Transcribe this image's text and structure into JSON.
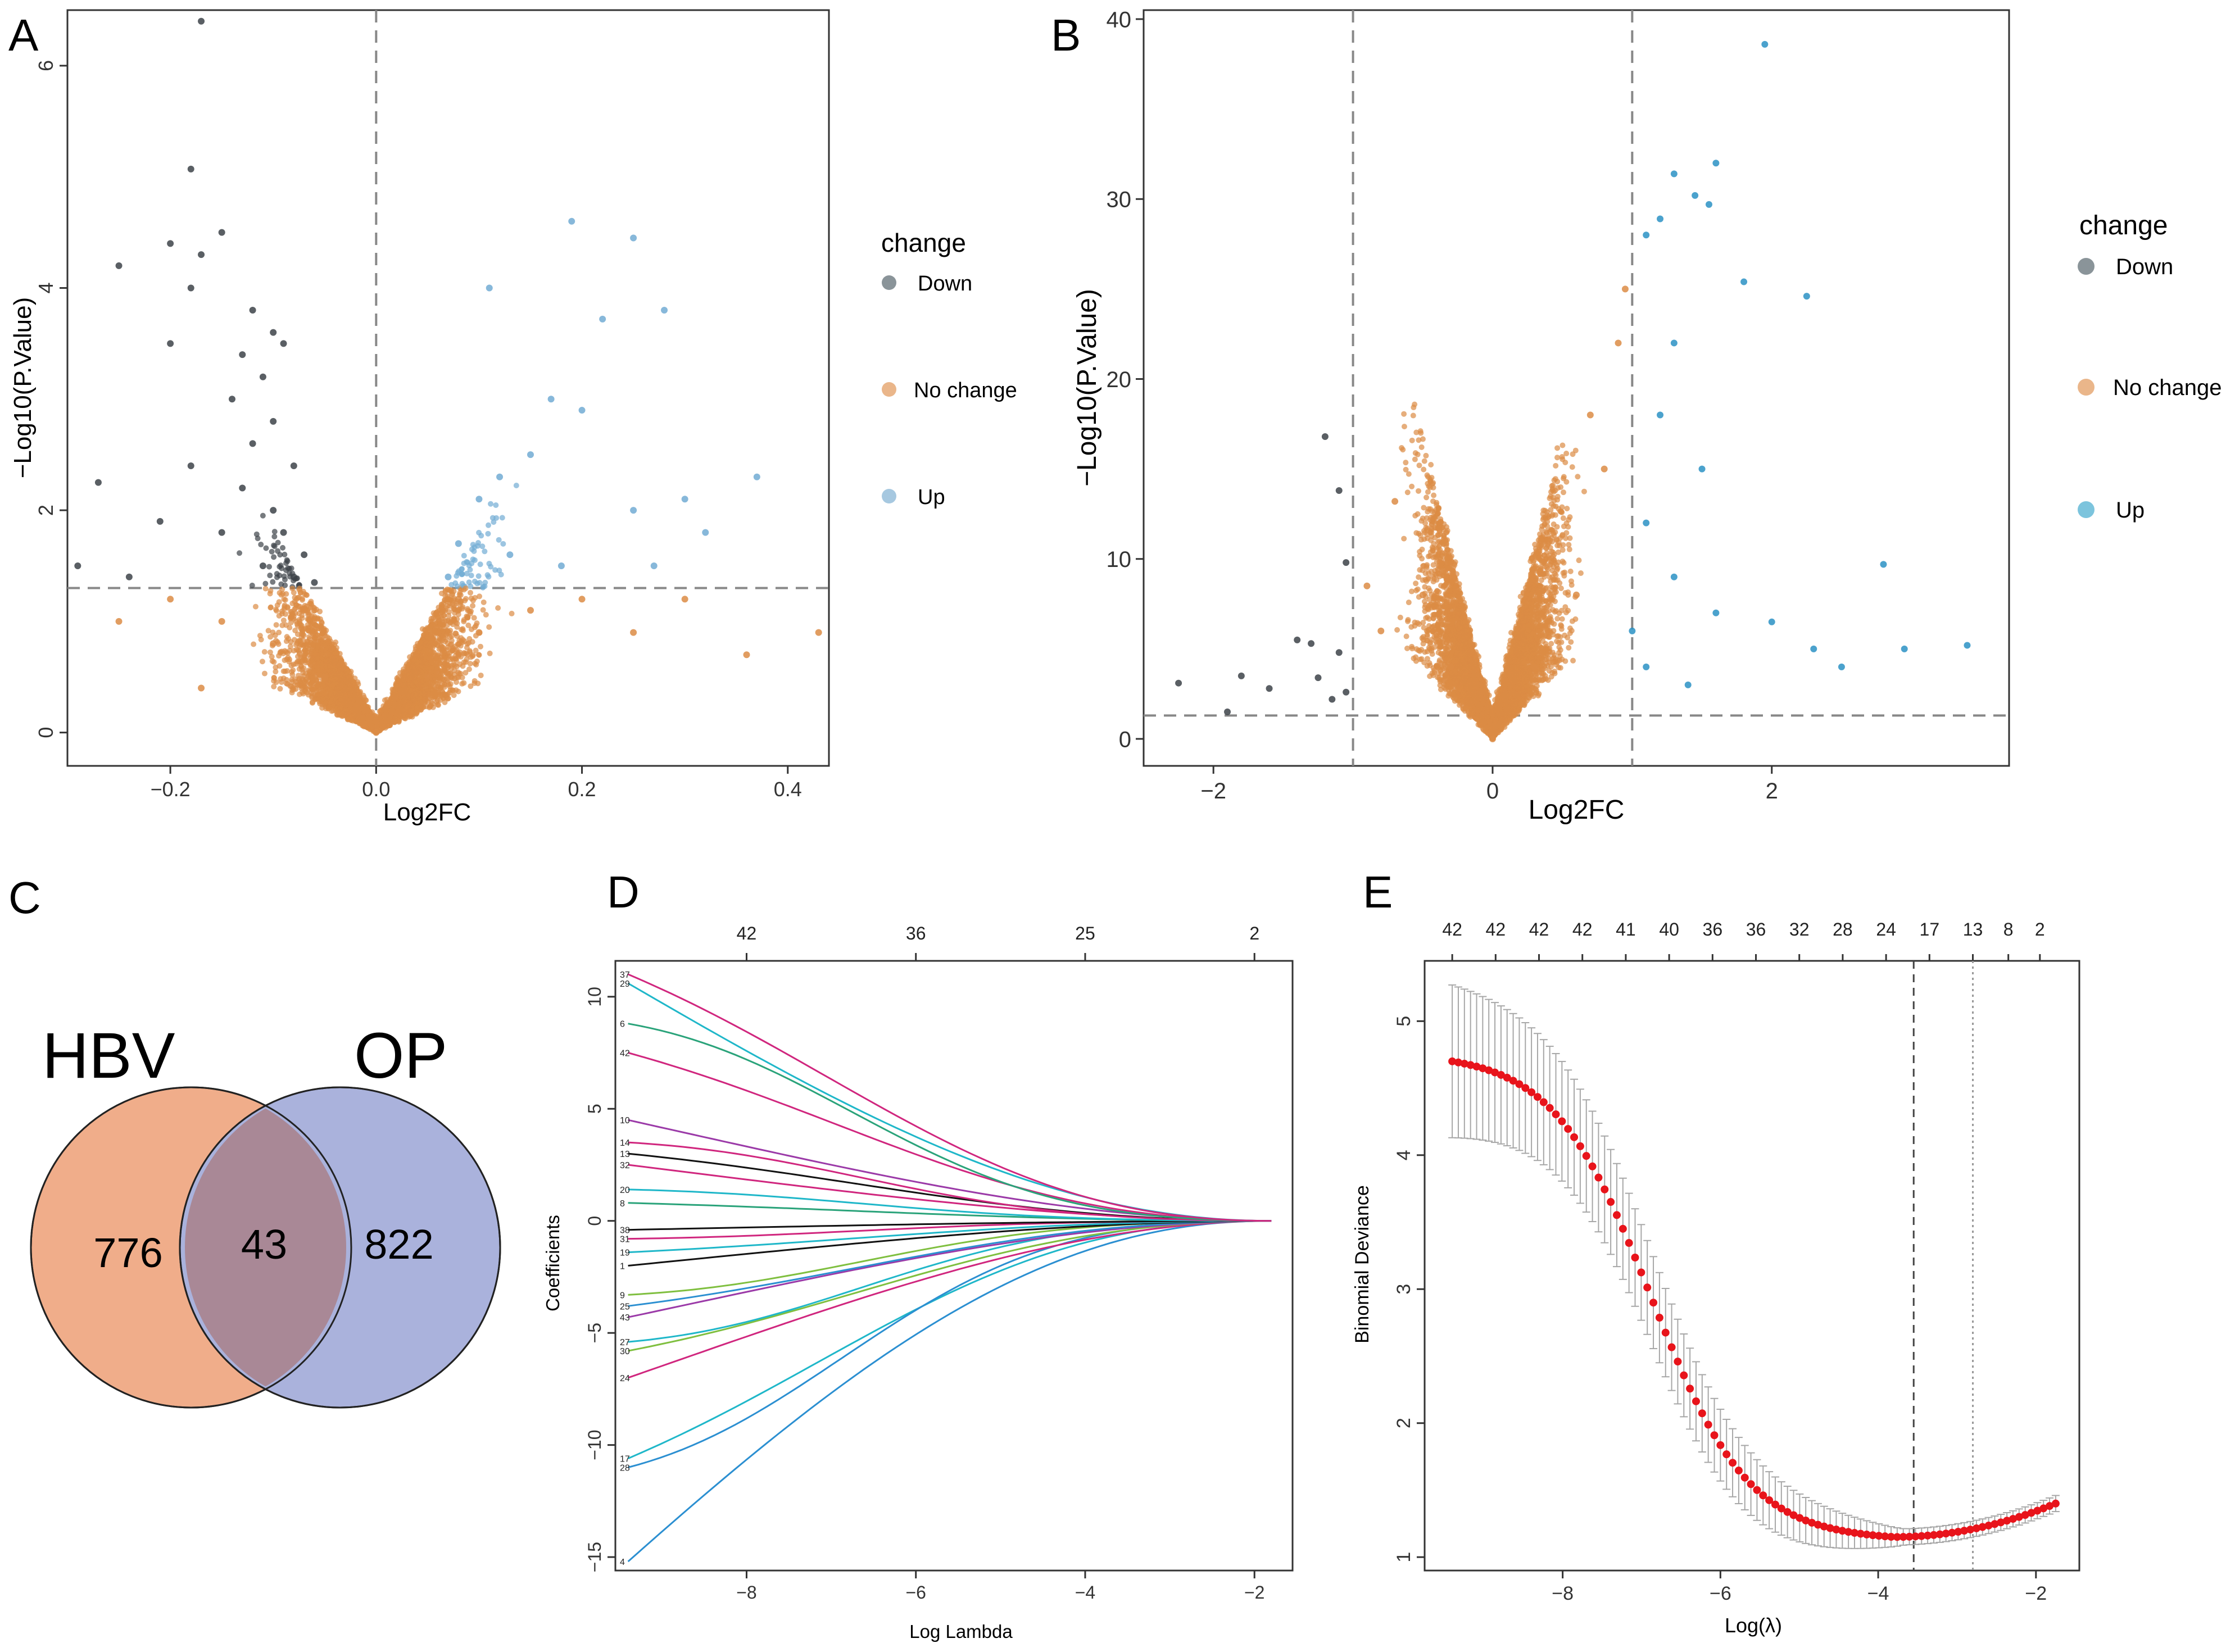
{
  "colors": {
    "down": "#3d4349",
    "down_legend": "#8a9499",
    "nochange": "#dc8c45",
    "nochange_legend": "#eab68a",
    "up_a": "#72acd4",
    "up_b": "#2b92c4",
    "up_a_legend": "#a6c8e0",
    "up_b_legend": "#7cc4dd",
    "venn_hbv": "#f0ad8a",
    "venn_op": "#aab2dc",
    "venn_overlap": "#a98896",
    "cv_point": "#e8141b",
    "cv_bar": "#a7a7a7",
    "lasso_palette": [
      "#2b8fd1",
      "#d0267e",
      "#1fb7c9",
      "#111111",
      "#7fbf3f",
      "#9b3aa8",
      "#2aa37a"
    ]
  },
  "chart_data": [
    {
      "panel": "A",
      "type": "scatter",
      "subtype": "volcano",
      "xlabel": "Log2FC",
      "ylabel": "−Log10(P.Value)",
      "xlim": [
        -0.3,
        0.44
      ],
      "ylim": [
        -0.3,
        6.5
      ],
      "xticks": [
        -0.2,
        0.0,
        0.2,
        0.4
      ],
      "xtick_labels": [
        "−0.2",
        "0.0",
        "0.2",
        "0.4"
      ],
      "yticks": [
        0,
        2,
        4,
        6
      ],
      "ytick_labels": [
        "0",
        "2",
        "4",
        "6"
      ],
      "vlines": [
        0.0
      ],
      "hlines": [
        1.3
      ],
      "legend": {
        "title": "change",
        "items": [
          {
            "label": "Down",
            "color_key": "down_legend"
          },
          {
            "label": "No change",
            "color_key": "nochange_legend"
          },
          {
            "label": "Up",
            "color_key": "up_a_legend"
          }
        ]
      },
      "series": [
        {
          "name": "Down",
          "color_key": "down",
          "points": [
            [
              -0.17,
              6.4
            ],
            [
              -0.18,
              5.07
            ],
            [
              -0.2,
              4.4
            ],
            [
              -0.15,
              4.5
            ],
            [
              -0.18,
              4.0
            ],
            [
              -0.25,
              4.2
            ],
            [
              -0.17,
              4.3
            ],
            [
              -0.2,
              3.5
            ],
            [
              -0.12,
              3.8
            ],
            [
              -0.1,
              3.6
            ],
            [
              -0.13,
              3.4
            ],
            [
              -0.09,
              3.5
            ],
            [
              -0.11,
              3.2
            ],
            [
              -0.14,
              3.0
            ],
            [
              -0.1,
              2.8
            ],
            [
              -0.12,
              2.6
            ],
            [
              -0.08,
              2.4
            ],
            [
              -0.13,
              2.2
            ],
            [
              -0.1,
              2.0
            ],
            [
              -0.09,
              1.8
            ],
            [
              -0.07,
              1.6
            ],
            [
              -0.11,
              1.5
            ],
            [
              -0.08,
              1.4
            ],
            [
              -0.06,
              1.35
            ],
            [
              -0.27,
              2.25
            ],
            [
              -0.29,
              1.5
            ],
            [
              -0.21,
              1.9
            ],
            [
              -0.18,
              2.4
            ],
            [
              -0.15,
              1.8
            ],
            [
              -0.24,
              1.4
            ]
          ]
        },
        {
          "name": "No change",
          "color_key": "nochange",
          "points": [
            [
              -0.2,
              1.2
            ],
            [
              -0.15,
              1.0
            ],
            [
              -0.1,
              0.8
            ],
            [
              -0.05,
              0.5
            ],
            [
              0.0,
              0.0
            ],
            [
              0.05,
              0.5
            ],
            [
              0.1,
              0.9
            ],
            [
              0.15,
              1.1
            ],
            [
              0.2,
              1.2
            ],
            [
              -0.07,
              1.1
            ],
            [
              0.08,
              1.2
            ],
            [
              0.25,
              0.9
            ],
            [
              0.3,
              1.2
            ],
            [
              0.36,
              0.7
            ],
            [
              0.43,
              0.9
            ],
            [
              -0.25,
              1.0
            ],
            [
              -0.17,
              0.4
            ]
          ]
        },
        {
          "name": "Up",
          "color_key": "up_a",
          "points": [
            [
              0.19,
              4.6
            ],
            [
              0.25,
              4.45
            ],
            [
              0.11,
              4.0
            ],
            [
              0.22,
              3.72
            ],
            [
              0.28,
              3.8
            ],
            [
              0.17,
              3.0
            ],
            [
              0.2,
              2.9
            ],
            [
              0.15,
              2.5
            ],
            [
              0.12,
              2.3
            ],
            [
              0.1,
              2.1
            ],
            [
              0.25,
              2.0
            ],
            [
              0.3,
              2.1
            ],
            [
              0.37,
              2.3
            ],
            [
              0.08,
              1.7
            ],
            [
              0.13,
              1.6
            ],
            [
              0.18,
              1.5
            ],
            [
              0.27,
              1.5
            ],
            [
              0.32,
              1.8
            ],
            [
              0.07,
              1.4
            ]
          ]
        }
      ]
    },
    {
      "panel": "B",
      "type": "scatter",
      "subtype": "volcano",
      "xlabel": "Log2FC",
      "ylabel": "−Log10(P.Value)",
      "xlim": [
        -2.5,
        3.7
      ],
      "ylim": [
        -1.5,
        40.5
      ],
      "xticks": [
        -2,
        0,
        2
      ],
      "xtick_labels": [
        "−2",
        "0",
        "2"
      ],
      "yticks": [
        0,
        10,
        20,
        30,
        40
      ],
      "ytick_labels": [
        "0",
        "10",
        "20",
        "30",
        "40"
      ],
      "vlines": [
        -1,
        1
      ],
      "hlines": [
        1.3
      ],
      "legend": {
        "title": "change",
        "items": [
          {
            "label": "Down",
            "color_key": "down_legend"
          },
          {
            "label": "No change",
            "color_key": "nochange_legend"
          },
          {
            "label": "Up",
            "color_key": "up_b_legend"
          }
        ]
      },
      "series": [
        {
          "name": "Down",
          "color_key": "down",
          "points": [
            [
              -1.2,
              16.8
            ],
            [
              -1.1,
              13.8
            ],
            [
              -1.05,
              9.8
            ],
            [
              -1.4,
              5.5
            ],
            [
              -1.3,
              5.3
            ],
            [
              -1.1,
              4.8
            ],
            [
              -1.25,
              3.4
            ],
            [
              -1.6,
              2.8
            ],
            [
              -1.8,
              3.5
            ],
            [
              -2.25,
              3.1
            ],
            [
              -1.15,
              2.2
            ],
            [
              -1.05,
              2.6
            ],
            [
              -1.9,
              1.5
            ]
          ]
        },
        {
          "name": "No change",
          "color_key": "nochange",
          "points": [
            [
              -0.7,
              13.2
            ],
            [
              -0.5,
              8.0
            ],
            [
              -0.3,
              4.0
            ],
            [
              0.0,
              0.0
            ],
            [
              0.3,
              4.0
            ],
            [
              0.6,
              8.0
            ],
            [
              0.8,
              15.0
            ],
            [
              0.9,
              22.0
            ],
            [
              0.95,
              25.0
            ],
            [
              0.7,
              18.0
            ],
            [
              -0.8,
              6.0
            ],
            [
              -0.9,
              8.5
            ]
          ]
        },
        {
          "name": "Up",
          "color_key": "up_b",
          "points": [
            [
              1.95,
              38.6
            ],
            [
              1.6,
              32.0
            ],
            [
              1.3,
              31.4
            ],
            [
              1.2,
              28.9
            ],
            [
              1.45,
              30.2
            ],
            [
              1.55,
              29.7
            ],
            [
              2.25,
              24.6
            ],
            [
              1.1,
              28.0
            ],
            [
              1.8,
              25.4
            ],
            [
              1.3,
              22.0
            ],
            [
              1.2,
              18.0
            ],
            [
              1.5,
              15.0
            ],
            [
              1.1,
              12.0
            ],
            [
              1.3,
              9.0
            ],
            [
              1.6,
              7.0
            ],
            [
              2.0,
              6.5
            ],
            [
              2.3,
              5.0
            ],
            [
              2.8,
              9.7
            ],
            [
              2.95,
              5.0
            ],
            [
              3.4,
              5.2
            ],
            [
              2.5,
              4.0
            ],
            [
              1.1,
              4.0
            ],
            [
              1.4,
              3.0
            ],
            [
              1.0,
              6.0
            ]
          ]
        }
      ]
    },
    {
      "panel": "C",
      "type": "venn",
      "sets": [
        {
          "label": "HBV",
          "only_count": "776",
          "color_key": "venn_hbv"
        },
        {
          "label": "OP",
          "only_count": "822",
          "color_key": "venn_op"
        }
      ],
      "intersection": "43"
    },
    {
      "panel": "D",
      "type": "line",
      "subtype": "lasso-coefficient-path",
      "xlabel": "Log Lambda",
      "ylabel": "Coefficients",
      "xlim": [
        -9.55,
        -1.55
      ],
      "ylim": [
        -15.6,
        11.6
      ],
      "xticks": [
        -8,
        -6,
        -4,
        -2
      ],
      "xtick_labels": [
        "−8",
        "−6",
        "−4",
        "−2"
      ],
      "yticks": [
        -15,
        -10,
        -5,
        0,
        5,
        10
      ],
      "ytick_labels": [
        "−15",
        "−10",
        "−5",
        "0",
        "5",
        "10"
      ],
      "top_axis": {
        "positions": [
          -8,
          -6,
          -4,
          -2
        ],
        "labels": [
          "42",
          "36",
          "25",
          "2"
        ]
      },
      "x_start": -9.4,
      "x_end": -1.8,
      "series": [
        {
          "label": "4",
          "start": -15.2,
          "color": 0,
          "mid": 0.55
        },
        {
          "label": "17",
          "start": -10.6,
          "color": 2,
          "mid": 0.5
        },
        {
          "label": "28",
          "start": -11.0,
          "color": 0,
          "mid": 0.5
        },
        {
          "label": "24",
          "start": -7.0,
          "color": 1,
          "mid": 0.3
        },
        {
          "label": "30",
          "start": -5.8,
          "color": 4,
          "mid": 0.3
        },
        {
          "label": "27",
          "start": -5.4,
          "color": 2,
          "mid": 0.3
        },
        {
          "label": "43",
          "start": -4.3,
          "color": 5,
          "mid": 0.3
        },
        {
          "label": "25",
          "start": -3.8,
          "color": 0,
          "mid": 0.3
        },
        {
          "label": "9",
          "start": -3.3,
          "color": 4,
          "mid": 0.3
        },
        {
          "label": "1",
          "start": -2.0,
          "color": 3,
          "mid": 0.3
        },
        {
          "label": "19",
          "start": -1.4,
          "color": 2,
          "mid": 0.3
        },
        {
          "label": "31",
          "start": -0.8,
          "color": 1,
          "mid": 0.3
        },
        {
          "label": "38",
          "start": -0.4,
          "color": 3,
          "mid": 0.3
        },
        {
          "label": "8",
          "start": 0.8,
          "color": 6,
          "mid": 0.3
        },
        {
          "label": "20",
          "start": 1.4,
          "color": 2,
          "mid": 0.3
        },
        {
          "label": "32",
          "start": 2.5,
          "color": 1,
          "mid": 0.3
        },
        {
          "label": "13",
          "start": 3.0,
          "color": 3,
          "mid": 0.3
        },
        {
          "label": "14",
          "start": 3.5,
          "color": 1,
          "mid": 0.3
        },
        {
          "label": "10",
          "start": 4.5,
          "color": 5,
          "mid": 0.3
        },
        {
          "label": "42",
          "start": 7.5,
          "color": 1,
          "mid": 0.4
        },
        {
          "label": "6",
          "start": 8.8,
          "color": 6,
          "mid": 0.4
        },
        {
          "label": "29",
          "start": 10.6,
          "color": 2,
          "mid": 0.45
        },
        {
          "label": "37",
          "start": 11.0,
          "color": 1,
          "mid": 0.45
        }
      ]
    },
    {
      "panel": "E",
      "type": "scatter",
      "subtype": "cross-validation-curve",
      "xlabel": "Log(λ)",
      "ylabel": "Binomial Deviance",
      "xlim": [
        -9.75,
        -1.45
      ],
      "ylim": [
        0.9,
        5.45
      ],
      "xticks": [
        -8,
        -6,
        -4,
        -2
      ],
      "xtick_labels": [
        "−8",
        "−6",
        "−4",
        "−2"
      ],
      "yticks": [
        1,
        2,
        3,
        4,
        5
      ],
      "ytick_labels": [
        "1",
        "2",
        "3",
        "4",
        "5"
      ],
      "vlines": [
        {
          "x": -3.55,
          "style": "dashed"
        },
        {
          "x": -2.8,
          "style": "dotted"
        }
      ],
      "top_axis": {
        "positions": [
          -9.4,
          -8.85,
          -8.3,
          -7.75,
          -7.2,
          -6.65,
          -6.1,
          -5.55,
          -5.0,
          -4.45,
          -3.9,
          -3.35,
          -2.8,
          -2.35,
          -1.95
        ],
        "labels": [
          "42",
          "42",
          "42",
          "42",
          "41",
          "40",
          "36",
          "36",
          "32",
          "28",
          "24",
          "17",
          "13",
          "8",
          "2"
        ]
      },
      "curve": {
        "x_start": -9.4,
        "x_end": -1.75,
        "n": 100,
        "y_start": 4.7,
        "y_min": 1.15,
        "x_min": -3.8,
        "y_end": 1.4,
        "err_start": 0.57,
        "err_end": 0.06
      }
    }
  ]
}
